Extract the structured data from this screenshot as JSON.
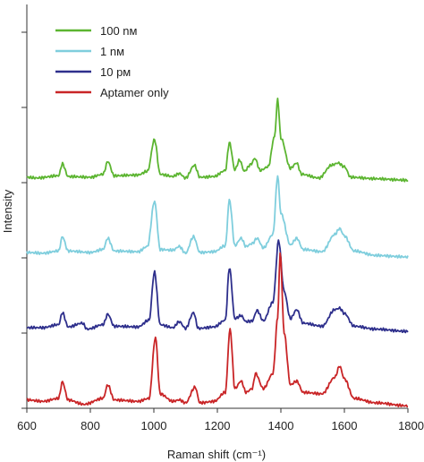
{
  "chart_data": {
    "type": "line",
    "xlabel": "Raman shift (cm⁻¹)",
    "ylabel": "Intensity",
    "xlim": [
      600,
      1800
    ],
    "x_ticks": [
      "600",
      "800",
      "1000",
      "1200",
      "1400",
      "1600",
      "1800"
    ],
    "y_ticks": 6,
    "y_units": "arbitrary, vertically offset spectra",
    "grid": false,
    "legend_position": "top-left",
    "series": [
      {
        "name": "100 nᴍ",
        "color": "#5cb531",
        "offset": 3,
        "points": [
          [
            600,
            0.06
          ],
          [
            630,
            0.05
          ],
          [
            700,
            0.08
          ],
          [
            712,
            0.24
          ],
          [
            730,
            0.07
          ],
          [
            800,
            0.06
          ],
          [
            840,
            0.1
          ],
          [
            855,
            0.27
          ],
          [
            875,
            0.08
          ],
          [
            950,
            0.09
          ],
          [
            980,
            0.14
          ],
          [
            1002,
            0.56
          ],
          [
            1020,
            0.1
          ],
          [
            1060,
            0.07
          ],
          [
            1080,
            0.11
          ],
          [
            1100,
            0.05
          ],
          [
            1128,
            0.22
          ],
          [
            1145,
            0.06
          ],
          [
            1190,
            0.07
          ],
          [
            1225,
            0.15
          ],
          [
            1238,
            0.52
          ],
          [
            1255,
            0.16
          ],
          [
            1270,
            0.29
          ],
          [
            1285,
            0.14
          ],
          [
            1305,
            0.23
          ],
          [
            1318,
            0.31
          ],
          [
            1335,
            0.15
          ],
          [
            1360,
            0.2
          ],
          [
            1380,
            0.6
          ],
          [
            1390,
            1.1
          ],
          [
            1400,
            0.58
          ],
          [
            1430,
            0.18
          ],
          [
            1450,
            0.25
          ],
          [
            1465,
            0.1
          ],
          [
            1520,
            0.05
          ],
          [
            1560,
            0.22
          ],
          [
            1580,
            0.25
          ],
          [
            1600,
            0.2
          ],
          [
            1620,
            0.06
          ],
          [
            1700,
            0.04
          ],
          [
            1800,
            0.02
          ]
        ]
      },
      {
        "name": "1 nᴍ",
        "color": "#7fcedd",
        "offset": 2,
        "points": [
          [
            600,
            0.06
          ],
          [
            650,
            0.05
          ],
          [
            700,
            0.08
          ],
          [
            712,
            0.27
          ],
          [
            730,
            0.08
          ],
          [
            800,
            0.06
          ],
          [
            840,
            0.1
          ],
          [
            855,
            0.25
          ],
          [
            875,
            0.08
          ],
          [
            950,
            0.07
          ],
          [
            980,
            0.14
          ],
          [
            1002,
            0.74
          ],
          [
            1020,
            0.1
          ],
          [
            1060,
            0.09
          ],
          [
            1080,
            0.14
          ],
          [
            1100,
            0.05
          ],
          [
            1125,
            0.27
          ],
          [
            1145,
            0.06
          ],
          [
            1190,
            0.07
          ],
          [
            1225,
            0.15
          ],
          [
            1238,
            0.76
          ],
          [
            1255,
            0.15
          ],
          [
            1275,
            0.25
          ],
          [
            1290,
            0.14
          ],
          [
            1310,
            0.18
          ],
          [
            1325,
            0.25
          ],
          [
            1345,
            0.12
          ],
          [
            1375,
            0.3
          ],
          [
            1390,
            1.08
          ],
          [
            1400,
            0.58
          ],
          [
            1430,
            0.16
          ],
          [
            1450,
            0.25
          ],
          [
            1470,
            0.1
          ],
          [
            1530,
            0.07
          ],
          [
            1570,
            0.3
          ],
          [
            1585,
            0.38
          ],
          [
            1600,
            0.28
          ],
          [
            1630,
            0.08
          ],
          [
            1700,
            0.02
          ],
          [
            1800,
            0.0
          ]
        ]
      },
      {
        "name": "10 pᴍ",
        "color": "#2e2f8c",
        "offset": 1,
        "points": [
          [
            600,
            0.06
          ],
          [
            650,
            0.06
          ],
          [
            700,
            0.1
          ],
          [
            712,
            0.26
          ],
          [
            730,
            0.07
          ],
          [
            775,
            0.12
          ],
          [
            790,
            0.04
          ],
          [
            840,
            0.1
          ],
          [
            855,
            0.24
          ],
          [
            875,
            0.08
          ],
          [
            950,
            0.07
          ],
          [
            985,
            0.16
          ],
          [
            1002,
            0.8
          ],
          [
            1020,
            0.1
          ],
          [
            1060,
            0.06
          ],
          [
            1080,
            0.14
          ],
          [
            1100,
            0.05
          ],
          [
            1125,
            0.26
          ],
          [
            1140,
            0.05
          ],
          [
            1190,
            0.07
          ],
          [
            1225,
            0.16
          ],
          [
            1238,
            0.86
          ],
          [
            1255,
            0.18
          ],
          [
            1275,
            0.22
          ],
          [
            1290,
            0.14
          ],
          [
            1310,
            0.15
          ],
          [
            1325,
            0.29
          ],
          [
            1345,
            0.15
          ],
          [
            1375,
            0.4
          ],
          [
            1393,
            1.22
          ],
          [
            1410,
            0.55
          ],
          [
            1430,
            0.18
          ],
          [
            1450,
            0.3
          ],
          [
            1470,
            0.12
          ],
          [
            1530,
            0.08
          ],
          [
            1570,
            0.3
          ],
          [
            1585,
            0.32
          ],
          [
            1600,
            0.25
          ],
          [
            1630,
            0.08
          ],
          [
            1700,
            0.04
          ],
          [
            1800,
            0.01
          ]
        ]
      },
      {
        "name": "Aptamer only",
        "color": "#c92527",
        "offset": 0,
        "points": [
          [
            600,
            0.1
          ],
          [
            650,
            0.08
          ],
          [
            700,
            0.12
          ],
          [
            712,
            0.34
          ],
          [
            730,
            0.1
          ],
          [
            780,
            0.04
          ],
          [
            840,
            0.12
          ],
          [
            855,
            0.3
          ],
          [
            875,
            0.1
          ],
          [
            950,
            0.08
          ],
          [
            985,
            0.12
          ],
          [
            1005,
            0.93
          ],
          [
            1020,
            0.18
          ],
          [
            1060,
            0.08
          ],
          [
            1080,
            0.1
          ],
          [
            1100,
            0.06
          ],
          [
            1130,
            0.27
          ],
          [
            1145,
            0.06
          ],
          [
            1190,
            0.08
          ],
          [
            1225,
            0.2
          ],
          [
            1240,
            1.04
          ],
          [
            1255,
            0.25
          ],
          [
            1275,
            0.35
          ],
          [
            1290,
            0.2
          ],
          [
            1310,
            0.25
          ],
          [
            1320,
            0.45
          ],
          [
            1345,
            0.25
          ],
          [
            1375,
            0.45
          ],
          [
            1390,
            1.2
          ],
          [
            1398,
            2.06
          ],
          [
            1410,
            1.0
          ],
          [
            1430,
            0.3
          ],
          [
            1450,
            0.35
          ],
          [
            1470,
            0.2
          ],
          [
            1530,
            0.18
          ],
          [
            1570,
            0.4
          ],
          [
            1585,
            0.55
          ],
          [
            1600,
            0.38
          ],
          [
            1630,
            0.12
          ],
          [
            1700,
            0.06
          ],
          [
            1800,
            0.02
          ]
        ]
      }
    ]
  }
}
